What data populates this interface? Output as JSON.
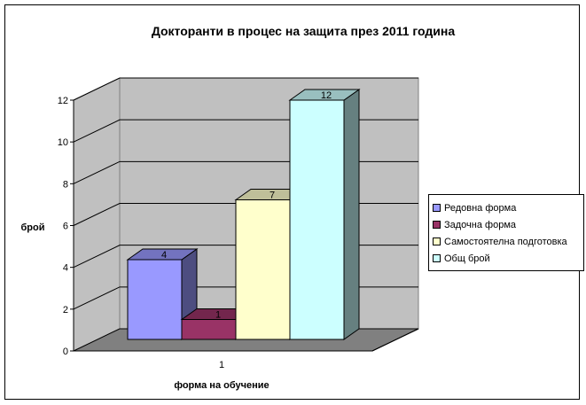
{
  "chart_data": {
    "type": "bar",
    "style": "3d-column",
    "title": "Докторанти в процес на защита през 2011 година",
    "xlabel": "форма на обучение",
    "ylabel": "брой",
    "categories": [
      "1"
    ],
    "ylim": [
      0,
      12
    ],
    "yticks": [
      "0",
      "2",
      "4",
      "6",
      "8",
      "10",
      "12"
    ],
    "grid": true,
    "legend_position": "right",
    "series": [
      {
        "name": "Редовна форма",
        "values": [
          4
        ],
        "label": "4",
        "color": "#9999ff",
        "side": "#4d4d80",
        "top": "#7373bf"
      },
      {
        "name": "Задочна форма",
        "values": [
          1
        ],
        "label": "1",
        "color": "#993366",
        "side": "#4d1a33",
        "top": "#73264d"
      },
      {
        "name": "Самостоятелна подготовка",
        "values": [
          7
        ],
        "label": "7",
        "color": "#ffffcc",
        "side": "#808066",
        "top": "#bfbf99"
      },
      {
        "name": "Общ брой",
        "values": [
          12
        ],
        "label": "12",
        "color": "#ccffff",
        "side": "#668080",
        "top": "#99bfbf"
      }
    ],
    "colors": {
      "wall": "#c0c0c0",
      "floor": "#808080",
      "gridline": "#000000"
    }
  }
}
